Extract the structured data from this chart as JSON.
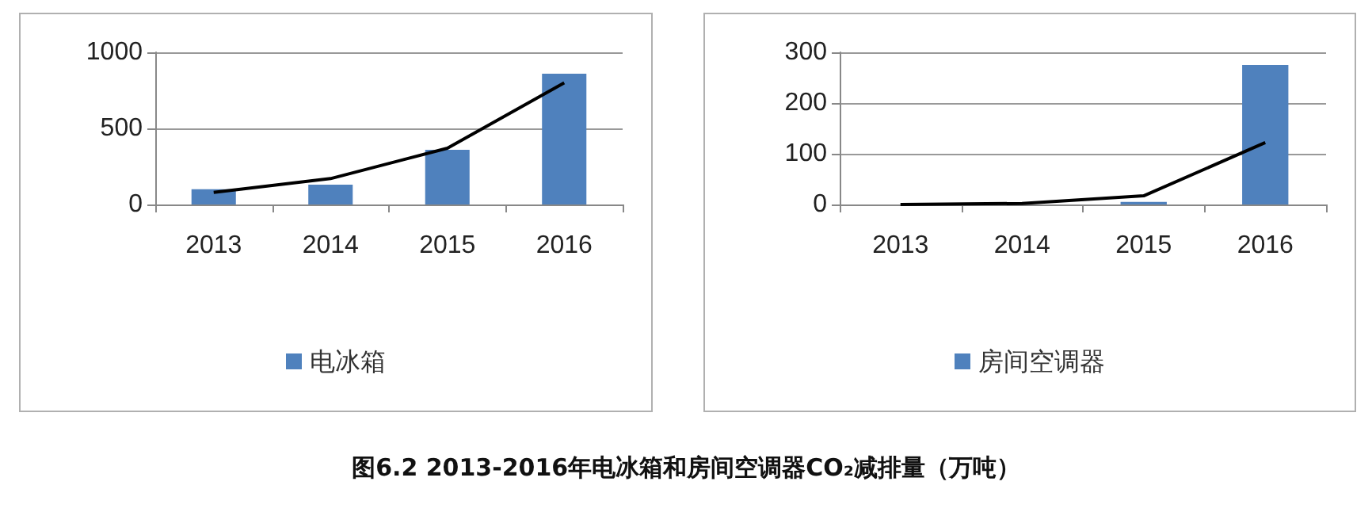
{
  "chart_data": [
    {
      "type": "bar",
      "categories": [
        "2013",
        "2014",
        "2015",
        "2016"
      ],
      "ylim": [
        0,
        1000
      ],
      "yticks": [
        0,
        500,
        1000
      ],
      "grid": "y",
      "legend": "bottom",
      "series": [
        {
          "name": "电冰箱",
          "color": "#4f81bd",
          "values": [
            100,
            130,
            360,
            860
          ]
        },
        {
          "type": "line",
          "color": "#000000",
          "marker": "none",
          "values": [
            80,
            170,
            370,
            800
          ]
        }
      ],
      "annotations": [
        "图6.2 2013-2016年电冰箱和房间空调器CO₂减排量（万吨）"
      ]
    },
    {
      "type": "bar",
      "categories": [
        "2013",
        "2014",
        "2015",
        "2016"
      ],
      "ylim": [
        0,
        300
      ],
      "yticks": [
        0,
        100,
        200,
        300
      ],
      "grid": "y",
      "legend": "bottom",
      "series": [
        {
          "name": "房间空调器",
          "color": "#4f81bd",
          "values": [
            null,
            null,
            5,
            275
          ]
        },
        {
          "type": "line",
          "color": "#000000",
          "marker": "none",
          "values": [
            0,
            2,
            17,
            122
          ]
        }
      ]
    }
  ]
}
